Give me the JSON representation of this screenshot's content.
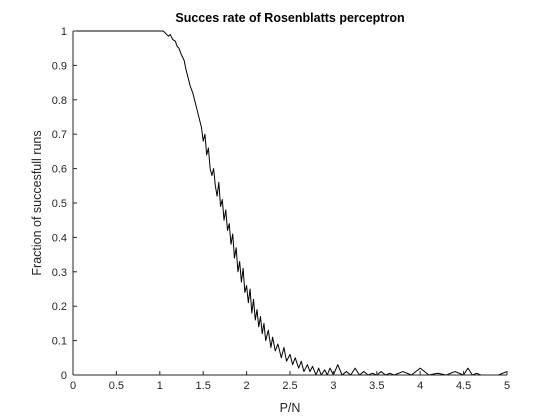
{
  "chart_data": {
    "type": "line",
    "title": "Succes rate of Rosenblatts perceptron",
    "xlabel": "P/N",
    "ylabel": "Fraction of succesfull runs",
    "xlim": [
      0,
      5
    ],
    "ylim": [
      0,
      1
    ],
    "grid": false,
    "xticks": [
      0,
      0.5,
      1,
      1.5,
      2,
      2.5,
      3,
      3.5,
      4,
      4.5,
      5
    ],
    "xtick_labels": [
      "0",
      "0.5",
      "1",
      "1.5",
      "2",
      "2.5",
      "3",
      "3.5",
      "4",
      "4.5",
      "5"
    ],
    "yticks": [
      0,
      0.1,
      0.2,
      0.3,
      0.4,
      0.5,
      0.6,
      0.7,
      0.8,
      0.9,
      1
    ],
    "ytick_labels": [
      "0",
      "0.1",
      "0.2",
      "0.3",
      "0.4",
      "0.5",
      "0.6",
      "0.7",
      "0.8",
      "0.9",
      "1"
    ],
    "series": [
      {
        "color": "#000000",
        "x": [
          0,
          0.5,
          1.0,
          1.04,
          1.08,
          1.1,
          1.12,
          1.15,
          1.18,
          1.2,
          1.22,
          1.25,
          1.28,
          1.3,
          1.32,
          1.35,
          1.38,
          1.4,
          1.42,
          1.44,
          1.46,
          1.48,
          1.5,
          1.52,
          1.54,
          1.56,
          1.58,
          1.6,
          1.62,
          1.64,
          1.66,
          1.68,
          1.7,
          1.72,
          1.74,
          1.76,
          1.78,
          1.8,
          1.82,
          1.84,
          1.86,
          1.88,
          1.9,
          1.92,
          1.94,
          1.96,
          1.98,
          2.0,
          2.02,
          2.04,
          2.06,
          2.08,
          2.1,
          2.12,
          2.14,
          2.16,
          2.18,
          2.2,
          2.22,
          2.25,
          2.28,
          2.3,
          2.33,
          2.36,
          2.4,
          2.43,
          2.46,
          2.5,
          2.53,
          2.56,
          2.6,
          2.63,
          2.66,
          2.7,
          2.73,
          2.76,
          2.8,
          2.83,
          2.86,
          2.9,
          2.93,
          2.96,
          3.0,
          3.05,
          3.1,
          3.15,
          3.2,
          3.25,
          3.3,
          3.35,
          3.4,
          3.45,
          3.5,
          3.55,
          3.6,
          3.65,
          3.7,
          3.8,
          3.9,
          4.0,
          4.1,
          4.2,
          4.3,
          4.4,
          4.5,
          4.55,
          4.6,
          4.65,
          4.7,
          4.8,
          4.9,
          4.95,
          5.0
        ],
        "values": [
          1,
          1,
          1,
          1,
          0.99,
          0.985,
          0.99,
          0.975,
          0.97,
          0.955,
          0.95,
          0.93,
          0.915,
          0.89,
          0.87,
          0.84,
          0.82,
          0.8,
          0.78,
          0.76,
          0.74,
          0.72,
          0.68,
          0.7,
          0.64,
          0.66,
          0.6,
          0.58,
          0.6,
          0.55,
          0.52,
          0.56,
          0.49,
          0.51,
          0.45,
          0.48,
          0.42,
          0.44,
          0.38,
          0.41,
          0.34,
          0.37,
          0.3,
          0.33,
          0.27,
          0.31,
          0.24,
          0.26,
          0.21,
          0.25,
          0.18,
          0.22,
          0.16,
          0.19,
          0.14,
          0.17,
          0.12,
          0.15,
          0.1,
          0.13,
          0.08,
          0.11,
          0.07,
          0.09,
          0.05,
          0.08,
          0.04,
          0.06,
          0.03,
          0.05,
          0.02,
          0.04,
          0.01,
          0.03,
          0.01,
          0.025,
          0.0,
          0.02,
          0.0,
          0.015,
          0.0,
          0.02,
          0.0,
          0.03,
          0.0,
          0.01,
          0.0,
          0.02,
          0.0,
          0.01,
          0.0,
          0.005,
          0.0,
          0.01,
          0.0,
          0.005,
          0.0,
          0.01,
          0.0,
          0.02,
          0.0,
          0.005,
          0.0,
          0.01,
          0.0,
          0.02,
          0.0,
          0.005,
          0.0,
          0.0,
          0.0,
          0.005,
          0.01
        ]
      }
    ]
  }
}
